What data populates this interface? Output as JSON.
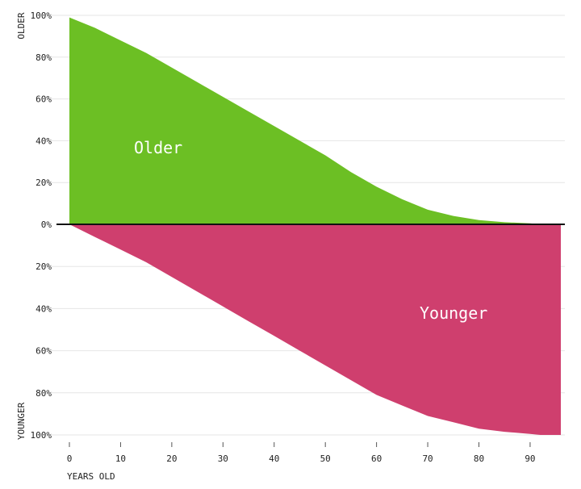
{
  "chart_data": {
    "type": "area",
    "xlabel": "YEARS OLD",
    "ylabel_top": "OLDER",
    "ylabel_bottom": "YOUNGER",
    "xlim": [
      0,
      96
    ],
    "x_ticks": [
      0,
      10,
      20,
      30,
      40,
      50,
      60,
      70,
      80,
      90
    ],
    "y_ticks_top": [
      "100%",
      "80%",
      "60%",
      "40%",
      "20%",
      "0%"
    ],
    "y_ticks_bottom": [
      "20%",
      "40%",
      "60%",
      "80%",
      "100%"
    ],
    "grid": true,
    "x": [
      0,
      5,
      10,
      15,
      20,
      25,
      30,
      35,
      40,
      45,
      50,
      55,
      60,
      65,
      70,
      75,
      80,
      85,
      90,
      92,
      96
    ],
    "series": [
      {
        "name": "Older",
        "color": "#6cbf24",
        "values": [
          99,
          94,
          88,
          82,
          75,
          68,
          61,
          54,
          47,
          40,
          33,
          25,
          18,
          12,
          7,
          4,
          2,
          1,
          0.5,
          0,
          0
        ]
      },
      {
        "name": "Younger",
        "color": "#cf3f6e",
        "values": [
          0,
          6,
          12,
          18,
          25,
          32,
          39,
          46,
          53,
          60,
          67,
          74,
          81,
          86,
          91,
          94,
          97,
          98.5,
          99.5,
          100,
          100
        ]
      }
    ]
  }
}
